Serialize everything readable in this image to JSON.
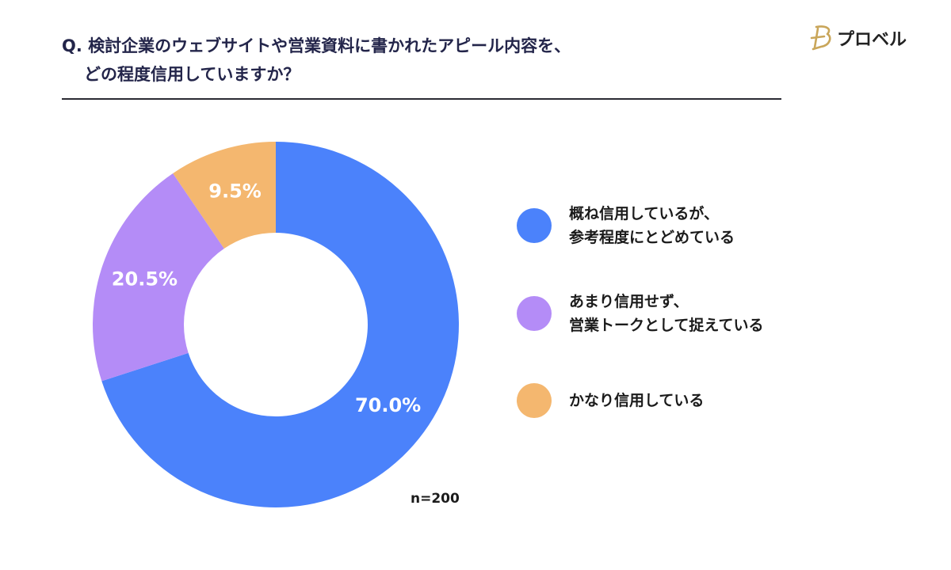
{
  "header": {
    "question_line1": "Q. 検討企業のウェブサイトや営業資料に書かれたアピール内容を、",
    "question_line2": "どの程度信用していますか？"
  },
  "logo": {
    "text": "プロベル",
    "mark_color": "#c9a65a"
  },
  "chart_data": {
    "type": "pie",
    "style": "donut",
    "slices": [
      {
        "label": "概ね信用しているが、\n参考程度にとどめている",
        "value": 70.0,
        "value_label": "70.0%",
        "color": "#4b82fb"
      },
      {
        "label": "あまり信用せず、\n営業トークとして捉えている",
        "value": 20.5,
        "value_label": "20.5%",
        "color": "#b48cf7"
      },
      {
        "label": "かなり信用している",
        "value": 9.5,
        "value_label": "9.5%",
        "color": "#f4b76f"
      }
    ],
    "start_angle": "12 o'clock",
    "direction": "clockwise",
    "legend_position": "right",
    "note": "n=200"
  }
}
